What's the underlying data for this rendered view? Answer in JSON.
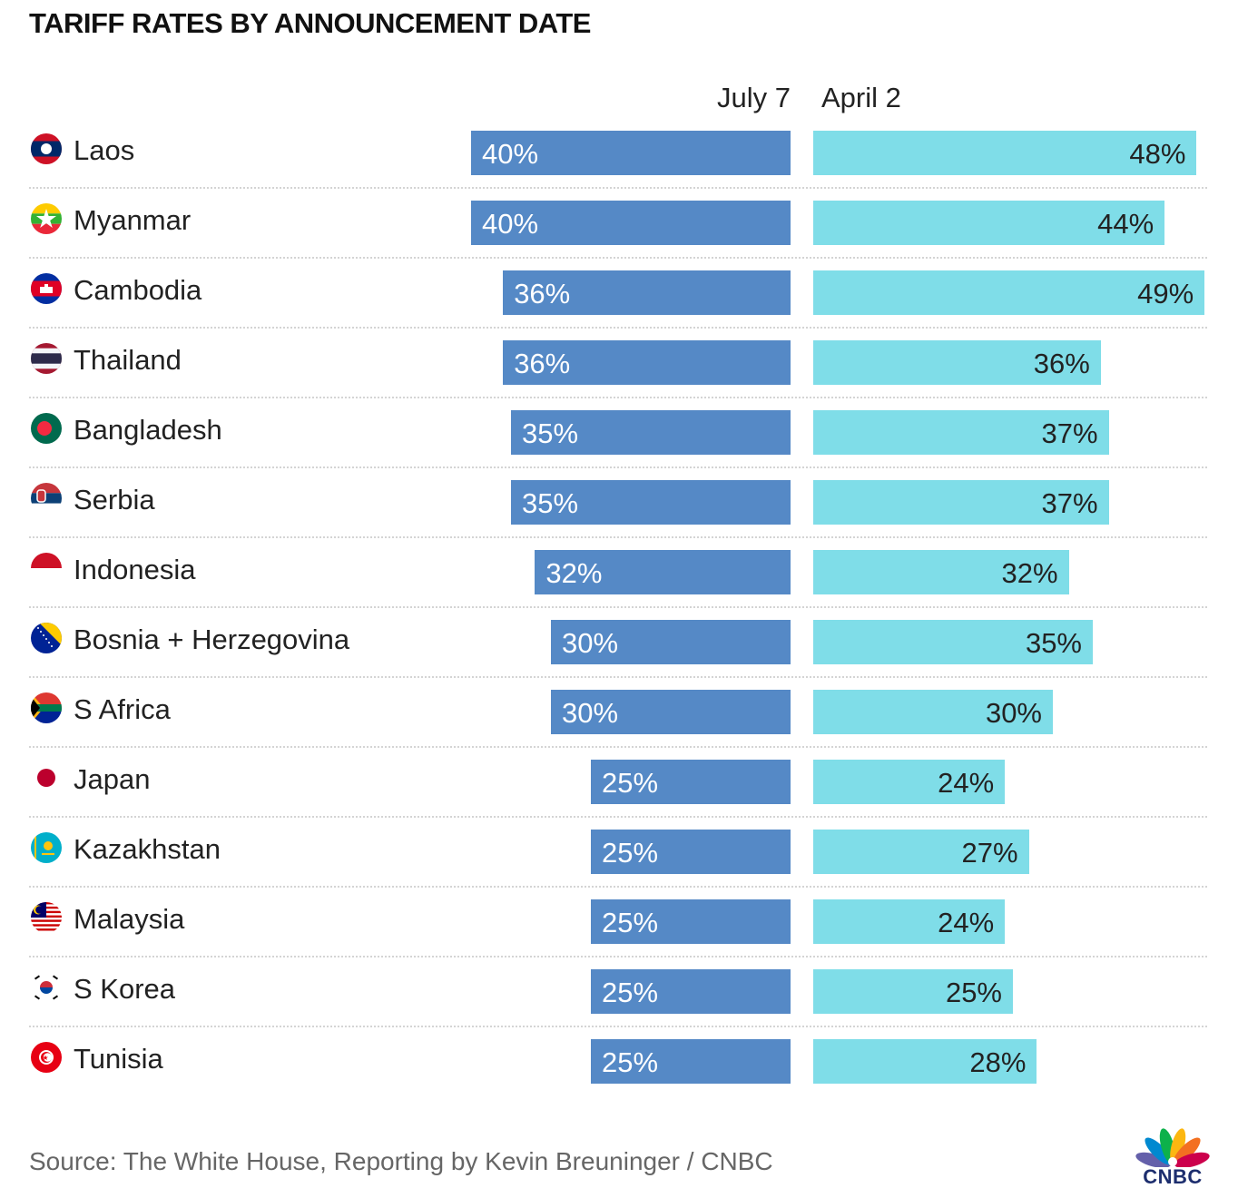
{
  "title": "TARIFF RATES BY ANNOUNCEMENT DATE",
  "source": "Source: The White House, Reporting by Kevin Breuninger / CNBC",
  "logo_text": "CNBC",
  "colors": {
    "july": "#5589c6",
    "april": "#7fdde8"
  },
  "chart_data": {
    "type": "bar",
    "orientation": "horizontal",
    "categories": [
      "Laos",
      "Myanmar",
      "Cambodia",
      "Thailand",
      "Bangladesh",
      "Serbia",
      "Indonesia",
      "Bosnia + Herzegovina",
      "S Africa",
      "Japan",
      "Kazakhstan",
      "Malaysia",
      "S Korea",
      "Tunisia"
    ],
    "flags": [
      "laos-flag-icon",
      "myanmar-flag-icon",
      "cambodia-flag-icon",
      "thailand-flag-icon",
      "bangladesh-flag-icon",
      "serbia-flag-icon",
      "indonesia-flag-icon",
      "bosnia-flag-icon",
      "south-africa-flag-icon",
      "japan-flag-icon",
      "kazakhstan-flag-icon",
      "malaysia-flag-icon",
      "south-korea-flag-icon",
      "tunisia-flag-icon"
    ],
    "series": [
      {
        "name": "July 7",
        "values": [
          40,
          40,
          36,
          36,
          35,
          35,
          32,
          30,
          30,
          25,
          25,
          25,
          25,
          25
        ],
        "labels": [
          "40%",
          "40%",
          "36%",
          "36%",
          "35%",
          "35%",
          "32%",
          "30%",
          "30%",
          "25%",
          "25%",
          "25%",
          "25%",
          "25%"
        ]
      },
      {
        "name": "April 2",
        "values": [
          48,
          44,
          49,
          36,
          37,
          37,
          32,
          35,
          30,
          24,
          27,
          24,
          25,
          28
        ],
        "labels": [
          "48%",
          "44%",
          "49%",
          "36%",
          "37%",
          "37%",
          "32%",
          "35%",
          "30%",
          "24%",
          "27%",
          "24%",
          "25%",
          "28%"
        ]
      }
    ]
  }
}
